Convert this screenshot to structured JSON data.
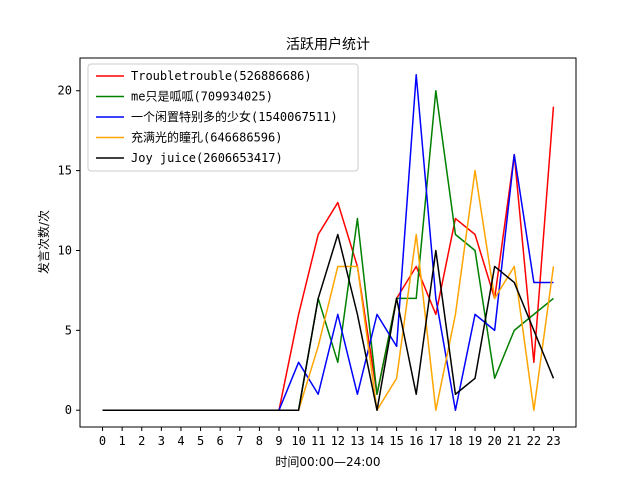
{
  "chart_data": {
    "type": "line",
    "title": "活跃用户统计",
    "xlabel": "时间00:00—24:00",
    "ylabel": "发言次数/次",
    "x": [
      0,
      1,
      2,
      3,
      4,
      5,
      6,
      7,
      8,
      9,
      10,
      11,
      12,
      13,
      14,
      15,
      16,
      17,
      18,
      19,
      20,
      21,
      22,
      23
    ],
    "xlim": [
      -1.15,
      24.15
    ],
    "ylim": [
      -1.05,
      22.05
    ],
    "yticks": [
      0,
      5,
      10,
      15,
      20
    ],
    "grid": false,
    "legend_position": "upper-left",
    "series": [
      {
        "name": "Troubletrouble(526886686)",
        "color": "#ff0000",
        "values": [
          0,
          0,
          0,
          0,
          0,
          0,
          0,
          0,
          0,
          0,
          6,
          11,
          13,
          9,
          1,
          7,
          9,
          6,
          12,
          11,
          7,
          16,
          3,
          19
        ]
      },
      {
        "name": "me只是呱呱(709934025)",
        "color": "#008000",
        "values": [
          0,
          0,
          0,
          0,
          0,
          0,
          0,
          0,
          0,
          0,
          0,
          7,
          3,
          12,
          1,
          7,
          7,
          20,
          11,
          10,
          2,
          5,
          6,
          7
        ]
      },
      {
        "name": "一个闲置特别多的少女(1540067511)",
        "color": "#0000ff",
        "values": [
          0,
          0,
          0,
          0,
          0,
          0,
          0,
          0,
          0,
          0,
          3,
          1,
          6,
          1,
          6,
          4,
          21,
          7,
          0,
          6,
          5,
          16,
          8,
          8
        ]
      },
      {
        "name": "充满光的瞳孔(646686596)",
        "color": "#ffa500",
        "values": [
          0,
          0,
          0,
          0,
          0,
          0,
          0,
          0,
          0,
          0,
          0,
          4,
          9,
          9,
          0,
          2,
          11,
          0,
          6,
          15,
          7,
          9,
          0,
          9
        ]
      },
      {
        "name": "Joy juice(2606653417)",
        "color": "#000000",
        "values": [
          0,
          0,
          0,
          0,
          0,
          0,
          0,
          0,
          0,
          0,
          0,
          7,
          11,
          6,
          0,
          7,
          1,
          10,
          1,
          2,
          9,
          8,
          5,
          2
        ]
      }
    ]
  }
}
